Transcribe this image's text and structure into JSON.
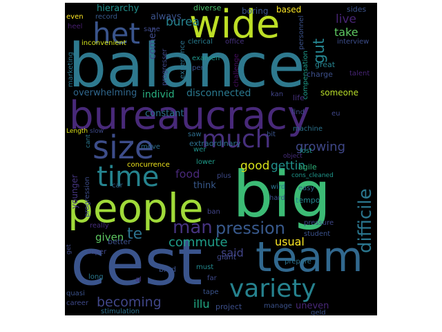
{
  "wordcloud": {
    "words": [
      {
        "text": "balance",
        "color": "#2e798e"
      },
      {
        "text": "bureaucracy",
        "color": "#482979"
      },
      {
        "text": "big",
        "color": "#3cbb75"
      },
      {
        "text": "cest",
        "color": "#3a548c"
      },
      {
        "text": "people",
        "color": "#a0da39"
      },
      {
        "text": "team",
        "color": "#31688e"
      },
      {
        "text": "wide",
        "color": "#bddf26"
      },
      {
        "text": "size",
        "color": "#3d4d8a"
      },
      {
        "text": "much",
        "color": "#472f7d"
      },
      {
        "text": "time",
        "color": "#25838e"
      },
      {
        "text": "variety",
        "color": "#26828e"
      },
      {
        "text": "het",
        "color": "#3a548c"
      },
      {
        "text": "pression",
        "color": "#38598c"
      },
      {
        "text": "difficile",
        "color": "#2a768e"
      },
      {
        "text": "man",
        "color": "#46337f"
      },
      {
        "text": "te",
        "color": "#2c728e"
      },
      {
        "text": "gut",
        "color": "#25838e"
      },
      {
        "text": "commute",
        "color": "#1f9e89"
      },
      {
        "text": "becoming",
        "color": "#404688"
      },
      {
        "text": "good",
        "color": "#d8e219"
      },
      {
        "text": "gettin",
        "color": "#21918c"
      },
      {
        "text": "growing",
        "color": "#3f4788"
      },
      {
        "text": "burea",
        "color": "#26828e"
      },
      {
        "text": "comes",
        "color": "#3e4a89"
      },
      {
        "text": "live",
        "color": "#482475"
      },
      {
        "text": "take",
        "color": "#5ec962"
      },
      {
        "text": "food",
        "color": "#482878"
      },
      {
        "text": "usual",
        "color": "#fde725"
      },
      {
        "text": "given",
        "color": "#5ec962"
      },
      {
        "text": "illu",
        "color": "#22a884"
      },
      {
        "text": "said",
        "color": "#414487"
      },
      {
        "text": "disconnected",
        "color": "#2a788e"
      },
      {
        "text": "individ",
        "color": "#29af7f"
      },
      {
        "text": "overwhelming",
        "color": "#30678d"
      },
      {
        "text": "hierarchy",
        "color": "#21908d"
      },
      {
        "text": "always",
        "color": "#3b528b"
      },
      {
        "text": "diverse",
        "color": "#4ac16d"
      },
      {
        "text": "boring",
        "color": "#3a538b"
      },
      {
        "text": "based",
        "color": "#fde725"
      },
      {
        "text": "sides",
        "color": "#3b528b"
      },
      {
        "text": "even",
        "color": "#fde725"
      },
      {
        "text": "record",
        "color": "#38598c"
      },
      {
        "text": "heel",
        "color": "#481f70"
      },
      {
        "text": "sane",
        "color": "#3e4989"
      },
      {
        "text": "clerical",
        "color": "#287c8e"
      },
      {
        "text": "office",
        "color": "#46327e"
      },
      {
        "text": "personnel",
        "color": "#3b528b"
      },
      {
        "text": "interview",
        "color": "#3d4e8a"
      },
      {
        "text": "inconvenient",
        "color": "#d0e11c"
      },
      {
        "text": "marketing",
        "color": "#2a768e"
      },
      {
        "text": "progresser",
        "color": "#3f4889"
      },
      {
        "text": "experience",
        "color": "#2c728e"
      },
      {
        "text": "examen",
        "color": "#1f968b"
      },
      {
        "text": "per",
        "color": "#3b528b"
      },
      {
        "text": "challenge",
        "color": "#470e61"
      },
      {
        "text": "compensation",
        "color": "#1e9b8a"
      },
      {
        "text": "great",
        "color": "#26828e"
      },
      {
        "text": "charge",
        "color": "#3c4f8a"
      },
      {
        "text": "talent",
        "color": "#482576"
      },
      {
        "text": "someone",
        "color": "#b8de29"
      },
      {
        "text": "life",
        "color": "#46307e"
      },
      {
        "text": "kan",
        "color": "#414487"
      },
      {
        "text": "find",
        "color": "#3e4a89"
      },
      {
        "text": "eu",
        "color": "#3f4788"
      },
      {
        "text": "constant",
        "color": "#2c718e"
      },
      {
        "text": "machine",
        "color": "#2c728e"
      },
      {
        "text": "Length",
        "color": "#dde318"
      },
      {
        "text": "slow",
        "color": "#3e4989"
      },
      {
        "text": "cant",
        "color": "#2a788e"
      },
      {
        "text": "saw",
        "color": "#2e6e8e"
      },
      {
        "text": "extraordinary",
        "color": "#2e6f8e"
      },
      {
        "text": "bit",
        "color": "#3a548c"
      },
      {
        "text": "lost",
        "color": "#1f988b"
      },
      {
        "text": "object",
        "color": "#472d7b"
      },
      {
        "text": "move",
        "color": "#2e6e8e"
      },
      {
        "text": "wer",
        "color": "#21918c"
      },
      {
        "text": "concurrence",
        "color": "#efe51c"
      },
      {
        "text": "lower",
        "color": "#1e9c89"
      },
      {
        "text": "agile",
        "color": "#2eb37c"
      },
      {
        "text": "plus",
        "color": "#3e4a89"
      },
      {
        "text": "cons_cleaned",
        "color": "#1f968b"
      },
      {
        "text": "younger",
        "color": "#453581"
      },
      {
        "text": "progression",
        "color": "#3d4d8a"
      },
      {
        "text": "think",
        "color": "#38598c"
      },
      {
        "text": "car",
        "color": "#31688e"
      },
      {
        "text": "wird",
        "color": "#2b748e"
      },
      {
        "text": "easy",
        "color": "#31688e"
      },
      {
        "text": "tempo",
        "color": "#24878e"
      },
      {
        "text": "hard",
        "color": "#3b528b"
      },
      {
        "text": "really",
        "color": "#472e7c"
      },
      {
        "text": "ban",
        "color": "#414487"
      },
      {
        "text": "pressure",
        "color": "#3f4889"
      },
      {
        "text": "better",
        "color": "#3c508b"
      },
      {
        "text": "giant",
        "color": "#3f4788"
      },
      {
        "text": "student",
        "color": "#3b528b"
      },
      {
        "text": "get",
        "color": "#3e4989"
      },
      {
        "text": "super",
        "color": "#3f4788"
      },
      {
        "text": "bred",
        "color": "#3b528b"
      },
      {
        "text": "must",
        "color": "#23898e"
      },
      {
        "text": "long",
        "color": "#2a788e"
      },
      {
        "text": "al",
        "color": "#46307e"
      },
      {
        "text": "far",
        "color": "#3e4989"
      },
      {
        "text": "prepare",
        "color": "#2c728e"
      },
      {
        "text": "quasi",
        "color": "#3b528b"
      },
      {
        "text": "career",
        "color": "#3e4989"
      },
      {
        "text": "project",
        "color": "#3c4f8a"
      },
      {
        "text": "tape",
        "color": "#3a548c"
      },
      {
        "text": "manage",
        "color": "#3b528b"
      },
      {
        "text": "uneven",
        "color": "#482878"
      },
      {
        "text": "stimulation",
        "color": "#2c728e"
      },
      {
        "text": "geld",
        "color": "#3b528b"
      }
    ]
  }
}
